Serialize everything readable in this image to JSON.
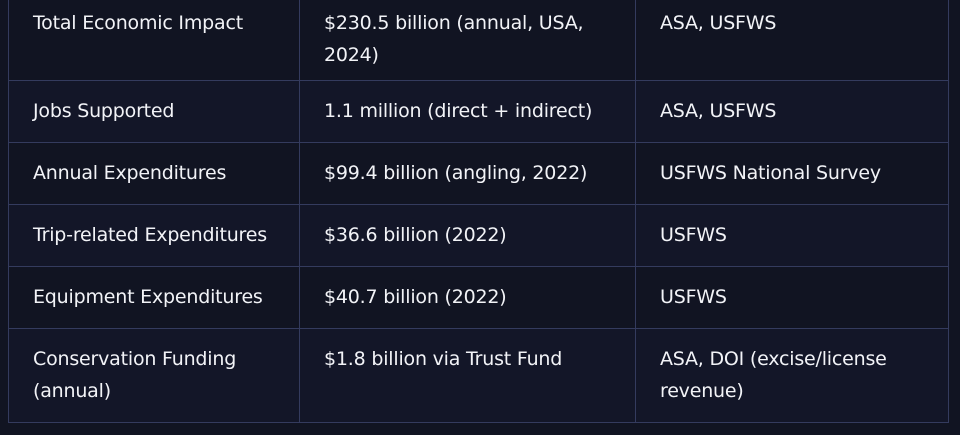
{
  "table": {
    "rows": [
      [
        "Total Economic Impact",
        "$230.5 billion (annual, USA, 2024)",
        "ASA, USFWS"
      ],
      [
        "Jobs Supported",
        "1.1 million (direct + indirect)",
        "ASA, USFWS"
      ],
      [
        "Annual Expenditures",
        "$99.4 billion (angling, 2022)",
        "USFWS National Survey"
      ],
      [
        "Trip-related Expenditures",
        "$36.6 billion (2022)",
        "USFWS"
      ],
      [
        "Equipment Expenditures",
        "$40.7 billion (2022)",
        "USFWS"
      ],
      [
        "Conservation Funding (annual)",
        "$1.8 billion via Trust Fund",
        "ASA, DOI (excise/license revenue)"
      ]
    ]
  }
}
